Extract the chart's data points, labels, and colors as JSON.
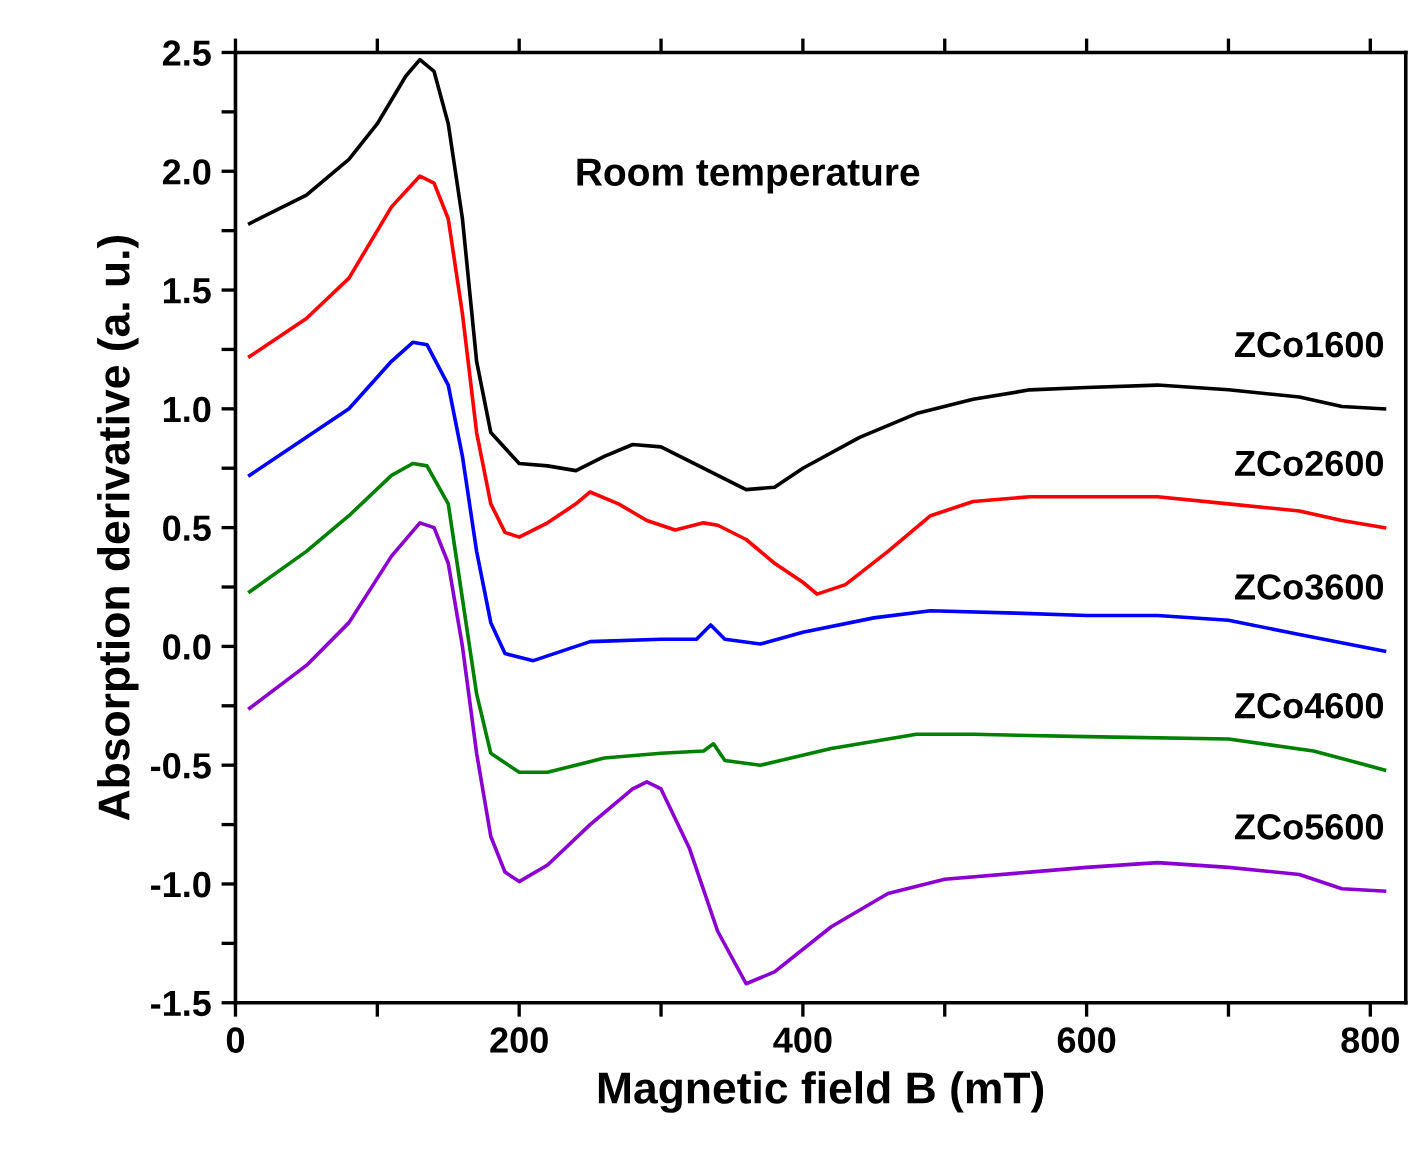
{
  "chart_data": {
    "type": "line",
    "xlabel": "Magnetic field B (mT)",
    "ylabel": "Absorption derivative (a. u.)",
    "annotations": [
      "Room temperature"
    ],
    "xlim": [
      0,
      825
    ],
    "ylim": [
      -1.5,
      2.5
    ],
    "xticks": [
      0,
      {
        "value": 100,
        "label": null
      },
      200,
      {
        "value": 300,
        "label": null
      },
      400,
      {
        "value": 500,
        "label": null
      },
      600,
      {
        "value": 700,
        "label": null
      },
      800
    ],
    "yticks": [
      {
        "value": -1.5,
        "label": "-1.5"
      },
      {
        "value": -1.25,
        "label": null
      },
      {
        "value": -1.0,
        "label": "-1.0"
      },
      {
        "value": -0.75,
        "label": null
      },
      {
        "value": -0.5,
        "label": "-0.5"
      },
      {
        "value": -0.25,
        "label": null
      },
      {
        "value": 0.0,
        "label": "0.0"
      },
      {
        "value": 0.25,
        "label": null
      },
      {
        "value": 0.5,
        "label": "0.5"
      },
      {
        "value": 0.75,
        "label": null
      },
      {
        "value": 1.0,
        "label": "1.0"
      },
      {
        "value": 1.25,
        "label": null
      },
      {
        "value": 1.5,
        "label": "1.5"
      },
      {
        "value": 1.75,
        "label": null
      },
      {
        "value": 2.0,
        "label": "2.0"
      },
      {
        "value": 2.25,
        "label": null
      },
      {
        "value": 2.5,
        "label": "2.5"
      }
    ],
    "grid": false,
    "legend": false,
    "marker": "none",
    "line_style": "solid",
    "series": [
      {
        "name": "ZCo1600",
        "color": "#000000",
        "x": [
          10,
          50,
          80,
          100,
          120,
          130,
          140,
          150,
          160,
          170,
          180,
          200,
          220,
          240,
          260,
          280,
          300,
          320,
          340,
          360,
          380,
          400,
          440,
          480,
          520,
          560,
          600,
          650,
          700,
          750,
          780,
          810
        ],
        "values": [
          1.78,
          1.9,
          2.05,
          2.2,
          2.4,
          2.47,
          2.42,
          2.2,
          1.8,
          1.2,
          0.9,
          0.77,
          0.76,
          0.74,
          0.8,
          0.85,
          0.84,
          0.78,
          0.72,
          0.66,
          0.67,
          0.75,
          0.88,
          0.98,
          1.04,
          1.08,
          1.09,
          1.1,
          1.08,
          1.05,
          1.01,
          1.0
        ]
      },
      {
        "name": "ZCo2600",
        "color": "#ff0000",
        "x": [
          10,
          50,
          80,
          110,
          130,
          140,
          150,
          160,
          170,
          180,
          190,
          200,
          220,
          240,
          250,
          270,
          290,
          310,
          330,
          340,
          360,
          380,
          400,
          410,
          430,
          460,
          490,
          520,
          560,
          600,
          650,
          700,
          750,
          780,
          810
        ],
        "values": [
          1.22,
          1.38,
          1.55,
          1.85,
          1.98,
          1.95,
          1.8,
          1.4,
          0.9,
          0.6,
          0.48,
          0.46,
          0.52,
          0.6,
          0.65,
          0.6,
          0.53,
          0.49,
          0.52,
          0.51,
          0.45,
          0.35,
          0.27,
          0.22,
          0.26,
          0.4,
          0.55,
          0.61,
          0.63,
          0.63,
          0.63,
          0.6,
          0.57,
          0.53,
          0.5
        ]
      },
      {
        "name": "ZCo3600",
        "color": "#0000ff",
        "x": [
          10,
          50,
          80,
          110,
          125,
          135,
          150,
          160,
          170,
          180,
          190,
          210,
          250,
          300,
          325,
          335,
          345,
          370,
          400,
          450,
          490,
          550,
          600,
          650,
          700,
          750,
          810
        ],
        "values": [
          0.72,
          0.88,
          1.0,
          1.2,
          1.28,
          1.27,
          1.1,
          0.8,
          0.4,
          0.1,
          -0.03,
          -0.06,
          0.02,
          0.03,
          0.03,
          0.09,
          0.03,
          0.01,
          0.06,
          0.12,
          0.15,
          0.14,
          0.13,
          0.13,
          0.11,
          0.05,
          -0.02
        ]
      },
      {
        "name": "ZCo4600",
        "color": "#008000",
        "x": [
          10,
          50,
          80,
          110,
          125,
          135,
          150,
          160,
          170,
          180,
          200,
          220,
          260,
          300,
          330,
          337,
          345,
          370,
          420,
          480,
          520,
          600,
          700,
          760,
          810
        ],
        "values": [
          0.23,
          0.4,
          0.55,
          0.72,
          0.77,
          0.76,
          0.6,
          0.2,
          -0.2,
          -0.45,
          -0.53,
          -0.53,
          -0.47,
          -0.45,
          -0.44,
          -0.41,
          -0.48,
          -0.5,
          -0.43,
          -0.37,
          -0.37,
          -0.38,
          -0.39,
          -0.44,
          -0.52
        ]
      },
      {
        "name": "ZCo5600",
        "color": "#8b00d0",
        "x": [
          10,
          50,
          80,
          110,
          130,
          140,
          150,
          160,
          170,
          180,
          190,
          200,
          220,
          250,
          280,
          290,
          300,
          320,
          340,
          360,
          380,
          420,
          460,
          500,
          560,
          600,
          650,
          700,
          750,
          780,
          810
        ],
        "values": [
          -0.26,
          -0.08,
          0.1,
          0.38,
          0.52,
          0.5,
          0.35,
          0.0,
          -0.45,
          -0.8,
          -0.95,
          -0.99,
          -0.92,
          -0.75,
          -0.6,
          -0.57,
          -0.6,
          -0.85,
          -1.2,
          -1.42,
          -1.37,
          -1.18,
          -1.04,
          -0.98,
          -0.95,
          -0.93,
          -0.91,
          -0.93,
          -0.96,
          -1.02,
          -1.03
        ]
      }
    ]
  }
}
